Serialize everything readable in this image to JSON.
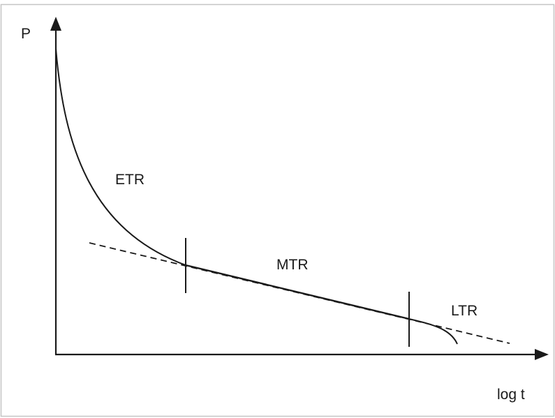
{
  "axes": {
    "y_label": "P",
    "x_label": "log t"
  },
  "regions": {
    "early": "ETR",
    "middle": "MTR",
    "late": "LTR"
  },
  "colors": {
    "line": "#1a1a1a",
    "frame": "#bfbfbf",
    "background": "#ffffff"
  }
}
